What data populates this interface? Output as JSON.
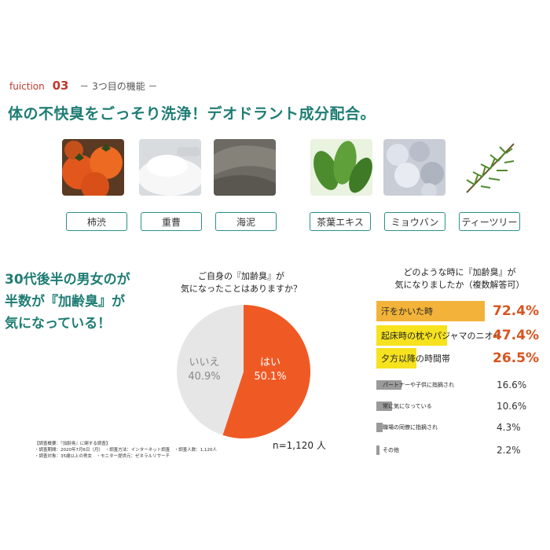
{
  "header": {
    "en": "fuiction",
    "num": "03",
    "subtitle": "－ 3つ目の機能 －",
    "headline": "体の不快臭をごっそり洗浄！デオドラント成分配合。"
  },
  "ingredients": [
    {
      "label": "柿渋",
      "icon": "persimmon-photo"
    },
    {
      "label": "重曹",
      "icon": "baking-soda-photo"
    },
    {
      "label": "海泥",
      "icon": "sea-mud-photo"
    },
    {
      "label": "茶葉エキス",
      "icon": "tea-leaf-photo"
    },
    {
      "label": "ミョウバン",
      "icon": "alum-photo"
    },
    {
      "label": "ティーツリー",
      "icon": "tea-tree-photo"
    }
  ],
  "claim": {
    "lines": [
      "30代後半の男女のが",
      "半数が『加齢臭』が",
      "気になっている！"
    ]
  },
  "pie_question": {
    "lines": [
      "ご自身の『加齢臭』が",
      "気になったことはありますか？"
    ]
  },
  "bar_question": {
    "lines": [
      "どのような時に『加齢臭』が",
      "気になりましたか（複数解答可）"
    ]
  },
  "survey_note": {
    "lines": [
      "【調査概要：『加齢臭』に関する調査】",
      "・調査期間：2020年7月6日（月）　・調査方法：インターネット調査　・調査人数：1,120人",
      "・調査対象：35歳以上の男女　・モニター提供元：ゼネラルリサーチ"
    ]
  },
  "n_label": "n=1,120 人",
  "colors": {
    "teal": "#1f7d74",
    "orange": "#ef5a24",
    "pie_gray": "#e6e6e6",
    "bar_yellow": "#f6e21e",
    "bar_orange": "#f3b33a",
    "bar_gray": "#9a9a9a",
    "pct_red": "#d9531e"
  },
  "chart_data": [
    {
      "type": "pie",
      "categories": [
        "はい",
        "いいえ"
      ],
      "values": [
        50.1,
        40.9
      ],
      "labels": [
        "はい",
        "いいえ"
      ],
      "value_labels": [
        "50.1%",
        "40.9%"
      ],
      "colors": [
        "#ef5a24",
        "#e6e6e6"
      ]
    },
    {
      "type": "bar",
      "orientation": "horizontal",
      "categories": [
        "汗をかいた時",
        "起床時の枕やパジャマのニオイ",
        "夕方以降の時間帯",
        "パートナーや子供に指摘され",
        "常に気になっている",
        "職場の同僚に指摘され",
        "その他"
      ],
      "values": [
        72.4,
        47.4,
        26.5,
        16.6,
        10.6,
        4.3,
        2.2
      ],
      "value_labels": [
        "72.4%",
        "47.4%",
        "26.5%",
        "16.6%",
        "10.6%",
        "4.3%",
        "2.2%"
      ]
    }
  ]
}
